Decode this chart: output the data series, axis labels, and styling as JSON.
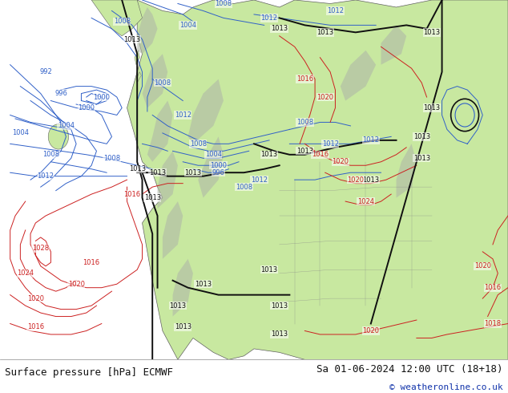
{
  "title_left": "Surface pressure [hPa] ECMWF",
  "title_right": "Sa 01-06-2024 12:00 UTC (18+18)",
  "copyright": "© weatheronline.co.uk",
  "bg_color": "#ffffff",
  "ocean_color": "#e0e0e8",
  "land_color": "#c8e8a0",
  "mountain_color": "#b0b8a8",
  "font_size_bottom": 9,
  "fig_width": 6.34,
  "fig_height": 4.9,
  "blue": "#3060c8",
  "red": "#cc2020",
  "black": "#101010"
}
